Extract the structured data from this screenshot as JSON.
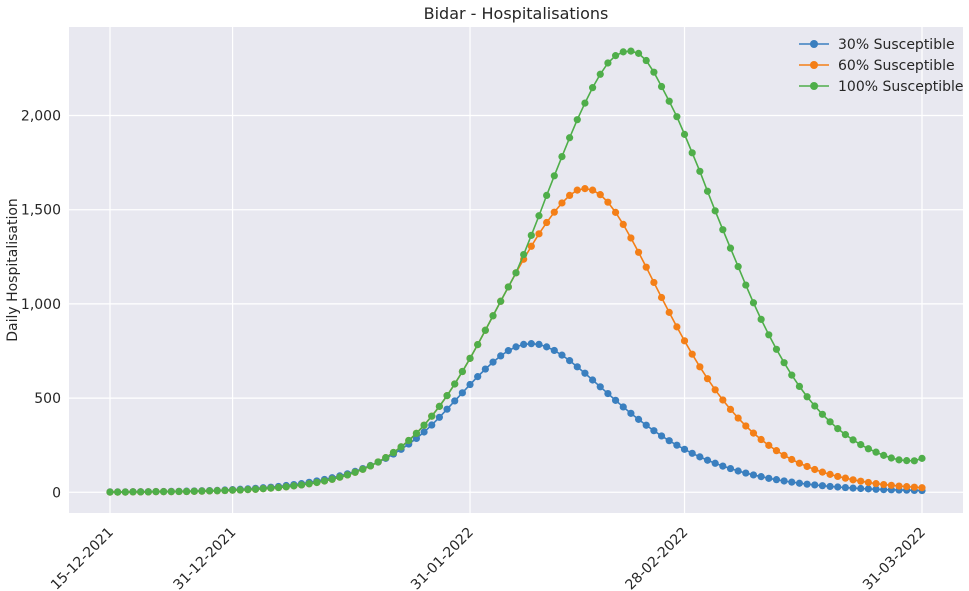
{
  "chart_data": {
    "type": "line",
    "title": "Bidar - Hospitalisations",
    "xlabel": "",
    "ylabel": "Daily Hospitalisation",
    "x_start": "15-12-2021",
    "x_end": "31-03-2022",
    "x_ticks": [
      "15-12-2021",
      "31-12-2021",
      "31-01-2022",
      "28-02-2022",
      "31-03-2022"
    ],
    "y_ticks": [
      0,
      500,
      1000,
      1500,
      2000
    ],
    "y_tick_labels": [
      "0",
      "500",
      "1,000",
      "1,500",
      "2,000"
    ],
    "ylim": [
      -110,
      2470
    ],
    "grid": true,
    "legend_position": "top-right",
    "series": [
      {
        "name": "30% Susceptible",
        "color": "#3a7fbf",
        "values": [
          2,
          2,
          2,
          3,
          3,
          3,
          4,
          4,
          5,
          5,
          6,
          7,
          8,
          9,
          10,
          12,
          14,
          16,
          18,
          21,
          24,
          27,
          31,
          36,
          41,
          46,
          53,
          60,
          68,
          77,
          87,
          98,
          111,
          126,
          142,
          160,
          180,
          203,
          228,
          256,
          286,
          320,
          357,
          398,
          441,
          485,
          528,
          572,
          614,
          654,
          691,
          724,
          752,
          772,
          785,
          789,
          785,
          772,
          753,
          728,
          699,
          666,
          632,
          596,
          560,
          524,
          488,
          453,
          419,
          387,
          356,
          327,
          299,
          274,
          250,
          228,
          207,
          188,
          170,
          154,
          139,
          126,
          113,
          102,
          92,
          83,
          74,
          67,
          60,
          54,
          48,
          43,
          39,
          35,
          31,
          28,
          25,
          22,
          20,
          18,
          16,
          14,
          13,
          12,
          11,
          10,
          9
        ]
      },
      {
        "name": "60% Susceptible",
        "color": "#f47f17",
        "values": [
          1,
          1,
          1,
          2,
          2,
          2,
          3,
          3,
          3,
          4,
          4,
          5,
          6,
          7,
          8,
          9,
          11,
          12,
          14,
          16,
          19,
          22,
          25,
          29,
          34,
          39,
          45,
          52,
          60,
          69,
          80,
          92,
          106,
          122,
          140,
          161,
          184,
          211,
          241,
          275,
          313,
          356,
          404,
          456,
          513,
          575,
          641,
          711,
          784,
          860,
          937,
          1014,
          1090,
          1165,
          1237,
          1306,
          1372,
          1432,
          1487,
          1536,
          1576,
          1604,
          1612,
          1604,
          1580,
          1540,
          1486,
          1422,
          1350,
          1274,
          1195,
          1114,
          1034,
          955,
          878,
          804,
          733,
          666,
          603,
          544,
          490,
          440,
          394,
          352,
          314,
          280,
          249,
          221,
          196,
          174,
          154,
          137,
          121,
          107,
          95,
          84,
          75,
          66,
          59,
          52,
          46,
          41,
          37,
          33,
          30,
          27,
          24
        ]
      },
      {
        "name": "100% Susceptible",
        "color": "#4fae4a",
        "values": [
          1,
          1,
          1,
          2,
          2,
          2,
          3,
          3,
          3,
          4,
          4,
          5,
          6,
          7,
          8,
          9,
          11,
          12,
          14,
          16,
          19,
          22,
          25,
          29,
          34,
          39,
          45,
          52,
          60,
          69,
          80,
          92,
          106,
          122,
          140,
          161,
          184,
          211,
          241,
          275,
          313,
          356,
          404,
          456,
          513,
          575,
          641,
          711,
          784,
          860,
          937,
          1014,
          1090,
          1165,
          1262,
          1364,
          1468,
          1576,
          1680,
          1782,
          1882,
          1978,
          2066,
          2148,
          2219,
          2279,
          2318,
          2338,
          2342,
          2330,
          2292,
          2230,
          2154,
          2076,
          1994,
          1900,
          1802,
          1704,
          1598,
          1494,
          1394,
          1296,
          1198,
          1100,
          1006,
          918,
          836,
          759,
          688,
          622,
          562,
          507,
          458,
          414,
          374,
          338,
          306,
          278,
          253,
          231,
          213,
          196,
          182,
          172,
          168,
          167,
          180
        ]
      }
    ]
  }
}
